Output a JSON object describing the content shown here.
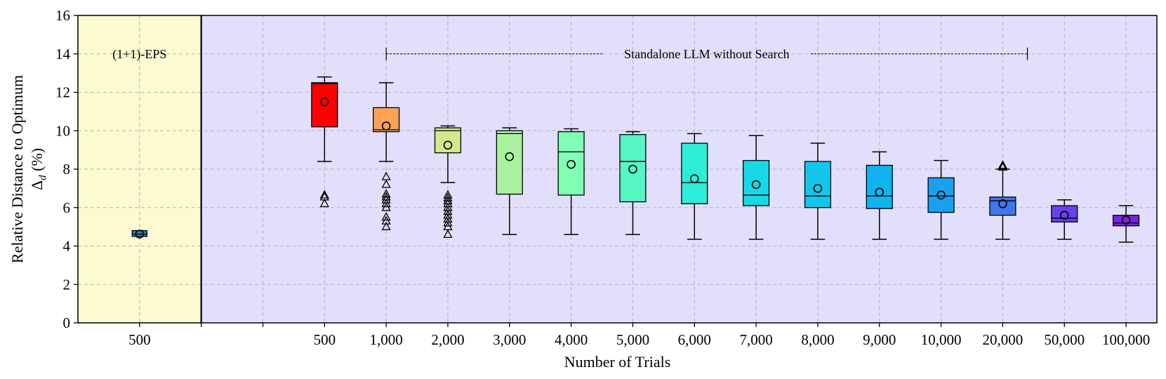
{
  "chart_data": {
    "type": "box",
    "xlabel": "Number of Trials",
    "ylabel_line1": "Relative Distance to Optimum",
    "ylabel_symbol": "Δ",
    "ylabel_subscript": "d",
    "ylabel_unit": " (%)",
    "ylim": [
      0,
      16
    ],
    "yticks": [
      0,
      2,
      4,
      6,
      8,
      10,
      12,
      14,
      16
    ],
    "grid": true,
    "regions": [
      {
        "label": "(1+1)-EPS",
        "background": "#fdf9d1",
        "slots": 2
      },
      {
        "label": "Standalone LLM without Search",
        "background": "#e2dffc",
        "slots": 15
      }
    ],
    "bracket": {
      "start_category_index": 2,
      "end_category_index": 12.4
    },
    "categories": [
      "500",
      "500",
      "1,000",
      "2,000",
      "3,000",
      "4,000",
      "5,000",
      "6,000",
      "7,000",
      "8,000",
      "9,000",
      "10,000",
      "20,000",
      "50,000",
      "100,000"
    ],
    "boxes": [
      {
        "region": 0,
        "label": "500",
        "whislo": 4.5,
        "q1": 4.5,
        "med": 4.62,
        "q3": 4.8,
        "whishi": 4.8,
        "mean": 4.62,
        "fliers": [],
        "color": "#3a7fc0"
      },
      {
        "region": 1,
        "label": "500",
        "whislo": 8.4,
        "q1": 10.2,
        "med": 12.45,
        "q3": 12.5,
        "whishi": 12.8,
        "mean": 11.5,
        "fliers": [
          6.2,
          6.55,
          6.65
        ],
        "color": "#ff0000"
      },
      {
        "region": 1,
        "label": "1,000",
        "whislo": 8.4,
        "q1": 9.95,
        "med": 10.05,
        "q3": 11.2,
        "whishi": 12.5,
        "mean": 10.25,
        "fliers": [
          5.0,
          5.3,
          5.5,
          6.0,
          6.2,
          6.4,
          6.55,
          6.7,
          7.2,
          7.6
        ],
        "color": "#ffa256"
      },
      {
        "region": 1,
        "label": "2,000",
        "whislo": 7.3,
        "q1": 8.85,
        "med": 10.0,
        "q3": 10.15,
        "whishi": 10.25,
        "mean": 9.25,
        "fliers": [
          4.6,
          5.0,
          5.2,
          5.4,
          5.6,
          5.8,
          6.0,
          6.2,
          6.35,
          6.5,
          6.65
        ],
        "color": "#d2e88f"
      },
      {
        "region": 1,
        "label": "3,000",
        "whislo": 4.6,
        "q1": 6.7,
        "med": 9.85,
        "q3": 10.0,
        "whishi": 10.15,
        "mean": 8.65,
        "fliers": [],
        "color": "#aaf2a0"
      },
      {
        "region": 1,
        "label": "4,000",
        "whislo": 4.6,
        "q1": 6.65,
        "med": 8.9,
        "q3": 9.95,
        "whishi": 10.1,
        "mean": 8.25,
        "fliers": [],
        "color": "#80ffb4"
      },
      {
        "region": 1,
        "label": "5,000",
        "whislo": 4.6,
        "q1": 6.3,
        "med": 8.4,
        "q3": 9.8,
        "whishi": 9.95,
        "mean": 8.0,
        "fliers": [],
        "color": "#56f5c4"
      },
      {
        "region": 1,
        "label": "6,000",
        "whislo": 4.35,
        "q1": 6.2,
        "med": 7.3,
        "q3": 9.35,
        "whishi": 9.85,
        "mean": 7.5,
        "fliers": [],
        "color": "#2cedd8"
      },
      {
        "region": 1,
        "label": "7,000",
        "whislo": 4.35,
        "q1": 6.1,
        "med": 6.65,
        "q3": 8.45,
        "whishi": 9.75,
        "mean": 7.2,
        "fliers": [],
        "color": "#17d8e6"
      },
      {
        "region": 1,
        "label": "8,000",
        "whislo": 4.35,
        "q1": 6.0,
        "med": 6.6,
        "q3": 8.4,
        "whishi": 9.35,
        "mean": 7.0,
        "fliers": [],
        "color": "#12c6ea"
      },
      {
        "region": 1,
        "label": "9,000",
        "whislo": 4.35,
        "q1": 5.95,
        "med": 6.6,
        "q3": 8.2,
        "whishi": 8.9,
        "mean": 6.8,
        "fliers": [],
        "color": "#0fb4ee"
      },
      {
        "region": 1,
        "label": "10,000",
        "whislo": 4.35,
        "q1": 5.75,
        "med": 6.6,
        "q3": 7.55,
        "whishi": 8.45,
        "mean": 6.65,
        "fliers": [],
        "color": "#1aa1ee"
      },
      {
        "region": 1,
        "label": "20,000",
        "whislo": 4.35,
        "q1": 5.6,
        "med": 6.35,
        "q3": 6.55,
        "whishi": 8.0,
        "mean": 6.2,
        "fliers": [
          8.1,
          8.2
        ],
        "color": "#3f78ee"
      },
      {
        "region": 1,
        "label": "50,000",
        "whislo": 4.35,
        "q1": 5.25,
        "med": 5.45,
        "q3": 6.1,
        "whishi": 6.4,
        "mean": 5.6,
        "fliers": [],
        "color": "#6a3ff0"
      },
      {
        "region": 1,
        "label": "100,000",
        "whislo": 4.2,
        "q1": 5.05,
        "med": 5.2,
        "q3": 5.6,
        "whishi": 6.1,
        "mean": 5.35,
        "fliers": [],
        "color": "#7b22e8"
      }
    ]
  }
}
